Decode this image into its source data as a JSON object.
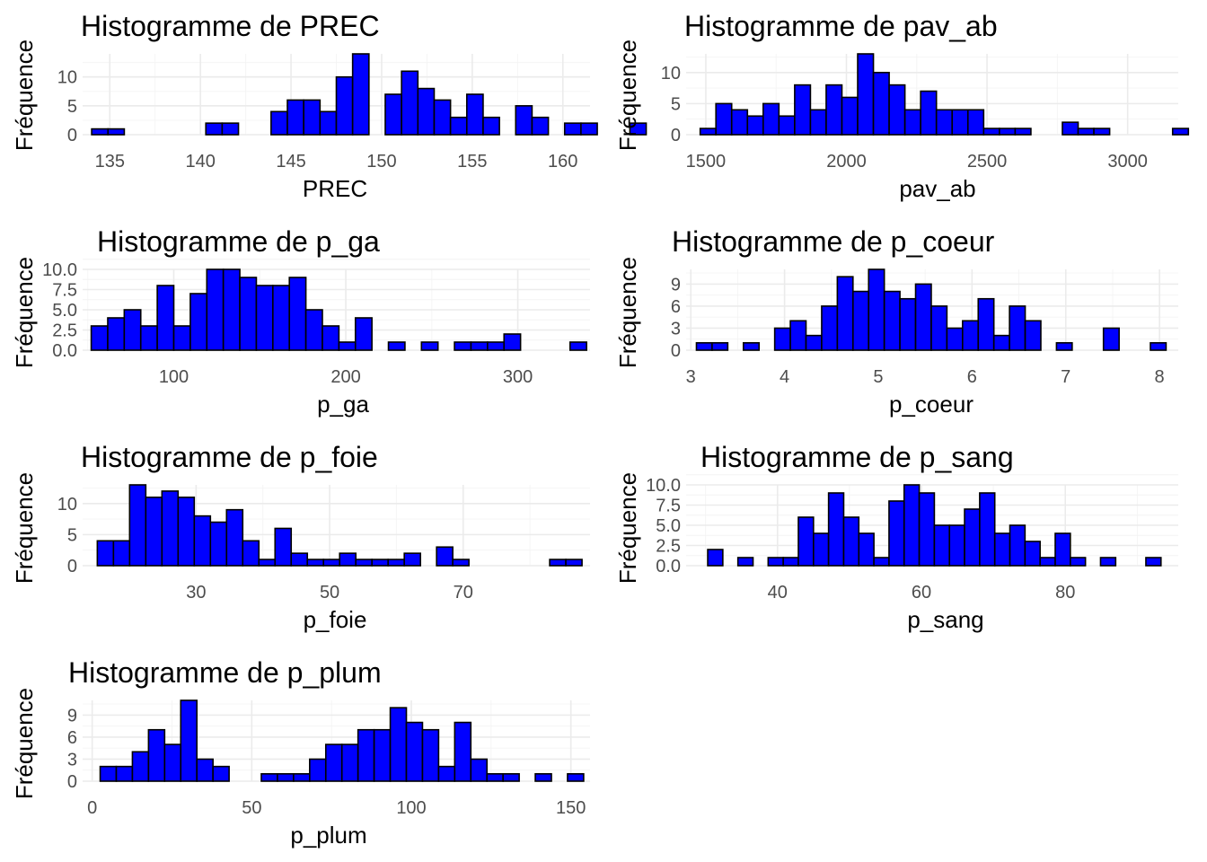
{
  "chart_data": [
    {
      "type": "bar",
      "title": "Histogramme de PREC",
      "xlabel": "PREC",
      "ylabel": "Fréquence",
      "bar_fill": "#0000ff",
      "bar_outline": "#000000",
      "bin_start": 134,
      "bin_width": 0.9,
      "counts": [
        1,
        1,
        0,
        0,
        0,
        0,
        0,
        2,
        2,
        0,
        0,
        4,
        6,
        6,
        4,
        10,
        14,
        0,
        7,
        11,
        8,
        6,
        3,
        7,
        3,
        0,
        5,
        3,
        0,
        2,
        2,
        0,
        0,
        2
      ],
      "xlim": [
        133.5,
        161.5
      ],
      "ylim": [
        0,
        14
      ],
      "xticks": [
        135,
        140,
        145,
        150,
        155,
        160
      ],
      "xtick_labels": [
        "135",
        "140",
        "145",
        "150",
        "155",
        "160"
      ],
      "yticks": [
        0,
        5,
        10
      ],
      "ytick_labels": [
        "0",
        "5",
        "10"
      ]
    },
    {
      "type": "bar",
      "title": "Histogramme de pav_ab",
      "xlabel": "pav_ab",
      "ylabel": "Fréquence",
      "bar_fill": "#0000ff",
      "bar_outline": "#000000",
      "bin_start": 1480,
      "bin_width": 56,
      "counts": [
        1,
        5,
        4,
        3,
        5,
        3,
        8,
        4,
        8,
        6,
        13,
        10,
        8,
        4,
        7,
        4,
        4,
        4,
        1,
        1,
        1,
        0,
        0,
        2,
        1,
        1,
        0,
        0,
        0,
        0,
        1
      ],
      "xlim": [
        1430,
        3180
      ],
      "ylim": [
        0,
        13
      ],
      "xticks": [
        1500,
        2000,
        2500,
        3000
      ],
      "xtick_labels": [
        "1500",
        "2000",
        "2500",
        "3000"
      ],
      "yticks": [
        0,
        5,
        10
      ],
      "ytick_labels": [
        "0",
        "5",
        "10"
      ]
    },
    {
      "type": "bar",
      "title": "Histogramme de p_ga",
      "xlabel": "p_ga",
      "ylabel": "Fréquence",
      "bar_fill": "#0000ff",
      "bar_outline": "#000000",
      "bin_start": 52,
      "bin_width": 9.6,
      "counts": [
        3,
        4,
        5,
        3,
        8,
        3,
        7,
        10,
        10,
        9,
        8,
        8,
        9,
        5,
        3,
        1,
        4,
        0,
        1,
        0,
        1,
        0,
        1,
        1,
        1,
        2,
        0,
        0,
        0,
        1
      ],
      "xlim": [
        47,
        342
      ],
      "ylim": [
        0,
        10
      ],
      "xticks": [
        100,
        200,
        300
      ],
      "xtick_labels": [
        "100",
        "200",
        "300"
      ],
      "yticks": [
        0,
        2.5,
        5,
        7.5,
        10
      ],
      "ytick_labels": [
        "0.0",
        "2.5",
        "5.0",
        "7.5",
        "10.0"
      ]
    },
    {
      "type": "bar",
      "title": "Histogramme de p_coeur",
      "xlabel": "p_coeur",
      "ylabel": "Fréquence",
      "bar_fill": "#0000ff",
      "bar_outline": "#000000",
      "bin_start": 3.06,
      "bin_width": 0.167,
      "counts": [
        1,
        1,
        0,
        1,
        0,
        3,
        4,
        2,
        6,
        10,
        8,
        11,
        8,
        7,
        9,
        6,
        3,
        4,
        7,
        2,
        6,
        4,
        0,
        1,
        0,
        0,
        3,
        0,
        0,
        1
      ],
      "xlim": [
        2.95,
        8.2
      ],
      "ylim": [
        0,
        11
      ],
      "xticks": [
        3,
        4,
        5,
        6,
        7,
        8
      ],
      "xtick_labels": [
        "3",
        "4",
        "5",
        "6",
        "7",
        "8"
      ],
      "yticks": [
        0,
        3,
        6,
        9
      ],
      "ytick_labels": [
        "0",
        "3",
        "6",
        "9"
      ]
    },
    {
      "type": "bar",
      "title": "Histogramme de p_foie",
      "xlabel": "p_foie",
      "ylabel": "Fréquence",
      "bar_fill": "#0000ff",
      "bar_outline": "#000000",
      "bin_start": 15.2,
      "bin_width": 2.42,
      "counts": [
        4,
        4,
        13,
        11,
        12,
        11,
        8,
        7,
        9,
        4,
        1,
        6,
        2,
        1,
        1,
        2,
        1,
        1,
        1,
        2,
        0,
        3,
        1,
        0,
        0,
        0,
        0,
        0,
        1,
        1
      ],
      "xlim": [
        13,
        89
      ],
      "ylim": [
        0,
        13
      ],
      "xticks": [
        30,
        50,
        70
      ],
      "xtick_labels": [
        "30",
        "50",
        "70"
      ],
      "yticks": [
        0,
        5,
        10
      ],
      "ytick_labels": [
        "0",
        "5",
        "10"
      ]
    },
    {
      "type": "bar",
      "title": "Histogramme de p_sang",
      "xlabel": "p_sang",
      "ylabel": "Fréquence",
      "bar_fill": "#0000ff",
      "bar_outline": "#000000",
      "bin_start": 30.3,
      "bin_width": 2.1,
      "counts": [
        2,
        0,
        1,
        0,
        1,
        1,
        6,
        4,
        9,
        6,
        4,
        1,
        8,
        10,
        9,
        5,
        5,
        7,
        9,
        4,
        5,
        3,
        1,
        4,
        1,
        0,
        1,
        0,
        0,
        1
      ],
      "xlim": [
        27.3,
        95.7
      ],
      "ylim": [
        0,
        10
      ],
      "xticks": [
        40,
        60,
        80
      ],
      "xtick_labels": [
        "40",
        "60",
        "80"
      ],
      "yticks": [
        0,
        2.5,
        5,
        7.5,
        10
      ],
      "ytick_labels": [
        "0.0",
        "2.5",
        "5.0",
        "7.5",
        "10.0"
      ]
    },
    {
      "type": "bar",
      "title": "Histogramme de p_plum",
      "xlabel": "p_plum",
      "ylabel": "Fréquence",
      "bar_fill": "#0000ff",
      "bar_outline": "#000000",
      "bin_start": 2.5,
      "bin_width": 5.05,
      "counts": [
        2,
        2,
        4,
        7,
        5,
        11,
        3,
        2,
        0,
        0,
        1,
        1,
        1,
        3,
        5,
        5,
        7,
        7,
        10,
        8,
        7,
        2,
        8,
        3,
        1,
        1,
        0,
        1,
        0,
        1
      ],
      "xlim": [
        -3,
        156
      ],
      "ylim": [
        0,
        11
      ],
      "xticks": [
        0,
        50,
        100,
        150
      ],
      "xtick_labels": [
        "0",
        "50",
        "100",
        "150"
      ],
      "yticks": [
        0,
        3,
        6,
        9
      ],
      "ytick_labels": [
        "0",
        "3",
        "6",
        "9"
      ]
    }
  ]
}
